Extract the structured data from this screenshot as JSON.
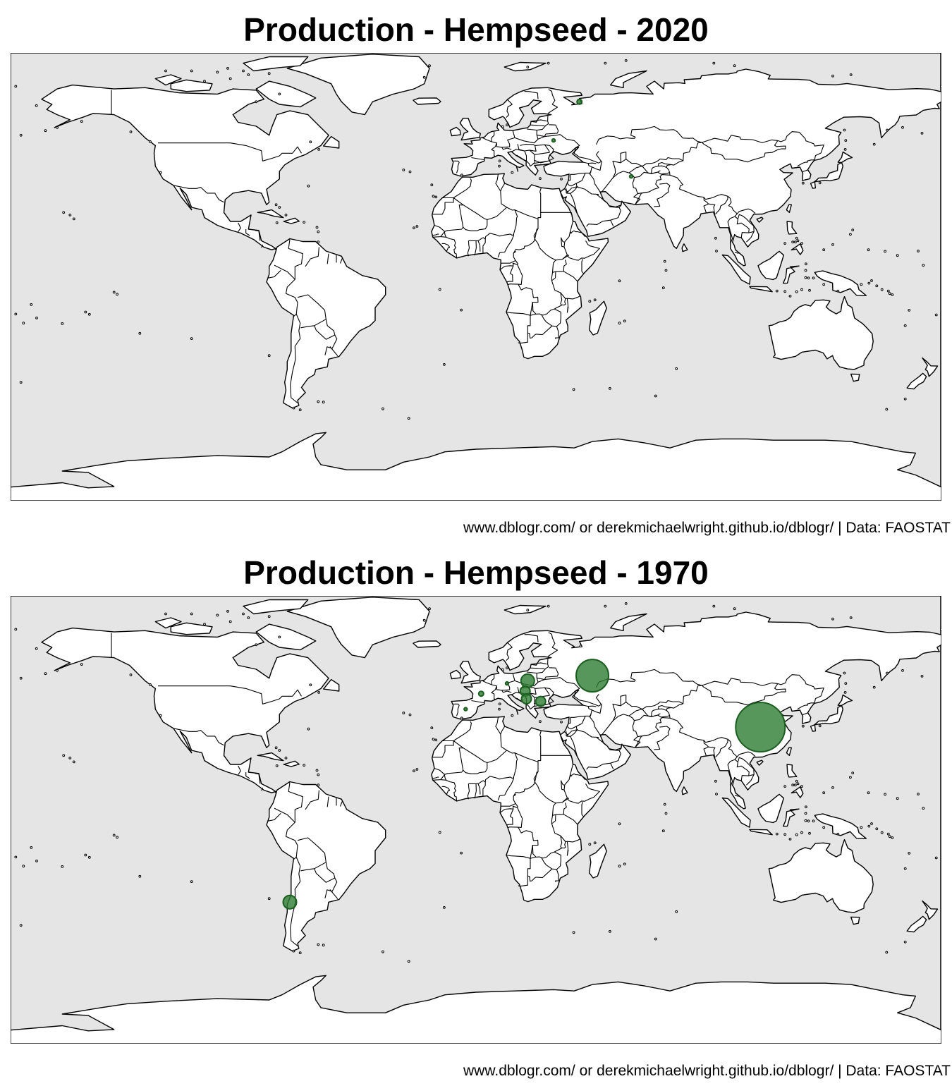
{
  "maps": [
    {
      "title": "Production - Hempseed - 2020",
      "caption": "www.dblogr.com/ or derekmichaelwright.github.io/dblogr/ | Data: FAOSTAT",
      "points": [
        {
          "lon": 40.0,
          "lat": 65.0,
          "size": "tiny"
        },
        {
          "lon": 30.0,
          "lat": 50.0,
          "size": "dot"
        },
        {
          "lon": 60.0,
          "lat": 36.0,
          "size": "dot"
        }
      ]
    },
    {
      "title": "Production - Hempseed - 1970",
      "caption": "www.dblogr.com/ or derekmichaelwright.github.io/dblogr/ | Data: FAOSTAT",
      "points": [
        {
          "lon": 110.0,
          "lat": 33.0,
          "size": "xlarge"
        },
        {
          "lon": 45.0,
          "lat": 53.0,
          "size": "large"
        },
        {
          "lon": 20.0,
          "lat": 51.0,
          "size": "medium"
        },
        {
          "lon": -72.0,
          "lat": -35.0,
          "size": "medium"
        },
        {
          "lon": 25.0,
          "lat": 43.0,
          "size": "small"
        },
        {
          "lon": 19.0,
          "lat": 47.0,
          "size": "small"
        },
        {
          "lon": 19.5,
          "lat": 44.0,
          "size": "small"
        },
        {
          "lon": 2.0,
          "lat": 46.0,
          "size": "tiny"
        },
        {
          "lon": 12.0,
          "lat": 50.0,
          "size": "dot"
        },
        {
          "lon": -4.0,
          "lat": 40.0,
          "size": "dot"
        }
      ]
    }
  ],
  "colors": {
    "ocean": "#e5e5e5",
    "land": "#ffffff",
    "border": "#000000",
    "bubble_fill": "#2e7d32",
    "bubble_stroke": "#1b5e20"
  }
}
